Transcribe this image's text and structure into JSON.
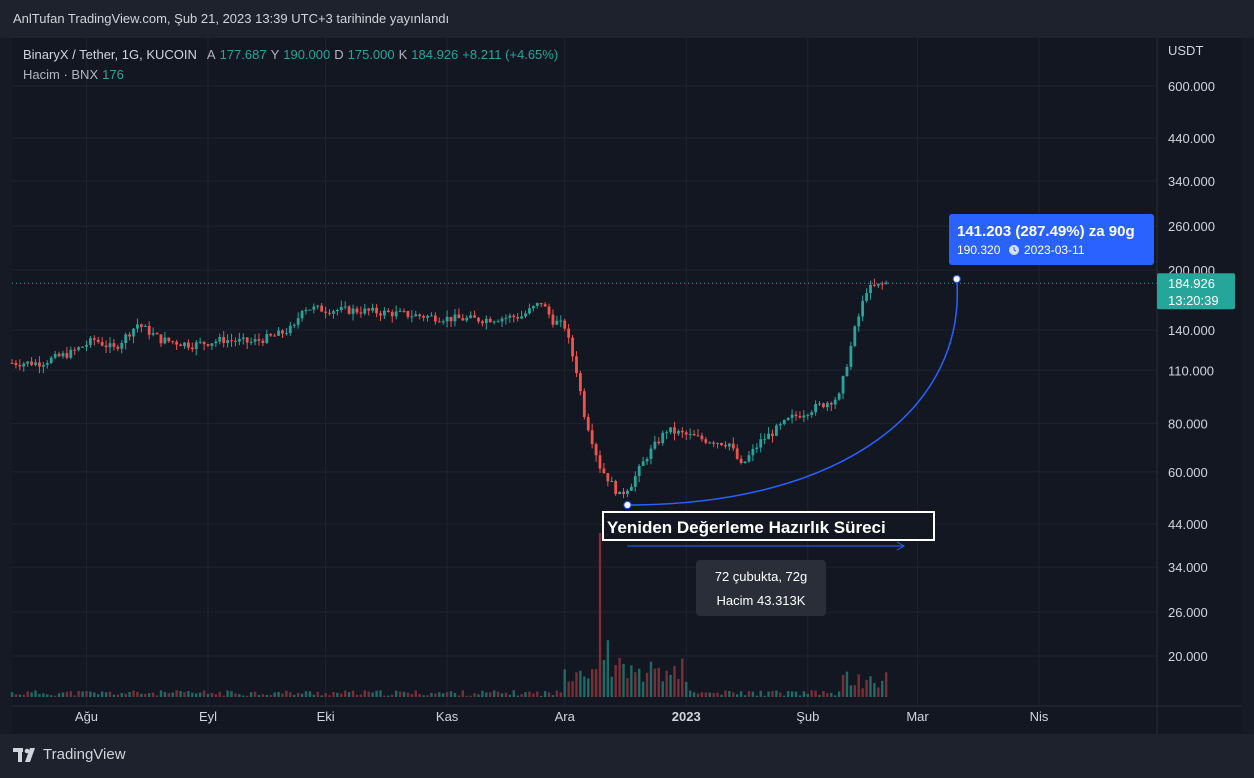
{
  "header": {
    "publish_text": "AnlTufan TradingView.com, Şub 21, 2023 13:39 UTC+3 tarihinde yayınlandı"
  },
  "legend": {
    "symbol": "BinaryX / Tether, 1G, KUCOIN",
    "open_label": "A",
    "open": "177.687",
    "high_label": "Y",
    "high": "190.000",
    "low_label": "D",
    "low": "175.000",
    "close_label": "K",
    "close": "184.926",
    "change": "+8.211 (+4.65%)",
    "volume_label": "Hacim · BNX",
    "volume": "176"
  },
  "footer": {
    "brand": "TradingView"
  },
  "colors": {
    "up": "#26a69a",
    "down": "#ef5350",
    "accent": "#2962ff",
    "background": "#131722"
  },
  "chart_data": {
    "type": "candlestick",
    "currency": "USDT",
    "y_scale": "log",
    "y_ticks": [
      "600.000",
      "440.000",
      "340.000",
      "260.000",
      "200.000",
      "140.000",
      "110.000",
      "80.000",
      "60.000",
      "44.000",
      "34.000",
      "26.000",
      "20.000"
    ],
    "x_ticks": [
      "Ağu",
      "Eyl",
      "Eki",
      "Kas",
      "Ara",
      "2023",
      "Şub",
      "Mar",
      "Nis"
    ],
    "last_price": {
      "value": "184.926",
      "countdown": "13:20:39"
    },
    "ohlc_points": [
      {
        "date": "2022-07-20",
        "close": 115
      },
      {
        "date": "2022-07-28",
        "close": 122
      },
      {
        "date": "2022-08-03",
        "close": 132
      },
      {
        "date": "2022-08-08",
        "close": 125
      },
      {
        "date": "2022-08-14",
        "close": 145
      },
      {
        "date": "2022-08-20",
        "close": 132
      },
      {
        "date": "2022-08-28",
        "close": 128
      },
      {
        "date": "2022-09-05",
        "close": 132
      },
      {
        "date": "2022-09-12",
        "close": 130
      },
      {
        "date": "2022-09-18",
        "close": 135
      },
      {
        "date": "2022-09-23",
        "close": 142
      },
      {
        "date": "2022-09-25",
        "close": 160
      },
      {
        "date": "2022-10-01",
        "close": 158
      },
      {
        "date": "2022-10-10",
        "close": 157
      },
      {
        "date": "2022-10-20",
        "close": 154
      },
      {
        "date": "2022-11-01",
        "close": 150
      },
      {
        "date": "2022-11-10",
        "close": 149
      },
      {
        "date": "2022-11-20",
        "close": 152
      },
      {
        "date": "2022-11-25",
        "close": 165
      },
      {
        "date": "2022-11-28",
        "close": 148
      },
      {
        "date": "2022-12-01",
        "close": 143
      },
      {
        "date": "2022-12-04",
        "close": 110
      },
      {
        "date": "2022-12-06",
        "close": 85
      },
      {
        "date": "2022-12-10",
        "close": 62
      },
      {
        "date": "2022-12-15",
        "close": 52
      },
      {
        "date": "2022-12-18",
        "close": 56
      },
      {
        "date": "2022-12-22",
        "close": 66
      },
      {
        "date": "2022-12-27",
        "close": 77
      },
      {
        "date": "2023-01-05",
        "close": 73
      },
      {
        "date": "2023-01-12",
        "close": 71
      },
      {
        "date": "2023-01-15",
        "close": 62
      },
      {
        "date": "2023-01-20",
        "close": 72
      },
      {
        "date": "2023-01-28",
        "close": 83
      },
      {
        "date": "2023-02-05",
        "close": 90
      },
      {
        "date": "2023-02-09",
        "close": 94
      },
      {
        "date": "2023-02-13",
        "close": 140
      },
      {
        "date": "2023-02-16",
        "close": 178
      },
      {
        "date": "2023-02-21",
        "close": 185
      }
    ],
    "volume": [
      {
        "date": "2022-12-10",
        "value": 43313
      },
      {
        "date": "2022-12-12",
        "value": 15000
      },
      {
        "date": "2022-12-17",
        "value": 5000
      },
      {
        "date": "2023-01-01",
        "value": 4000
      },
      {
        "date": "2023-02-16",
        "value": 4500
      }
    ],
    "annotations": {
      "measure_label_1": "141.203 (287.49%) za 90g",
      "measure_label_2": "190.320",
      "measure_date": "2023-03-11",
      "title_box": "Yeniden Değerleme Hazırlık Süreci",
      "range_bars": "72 çubukta, 72g",
      "range_volume": "Hacim 43.313K"
    }
  }
}
